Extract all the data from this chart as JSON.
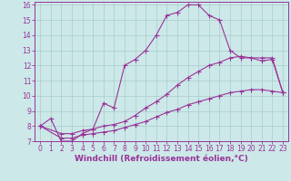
{
  "bg_color": "#cce8e8",
  "line_color": "#993399",
  "grid_color": "#aacccc",
  "xlabel": "Windchill (Refroidissement éolien,°C)",
  "xlabel_fontsize": 6.5,
  "tick_fontsize": 5.5,
  "xlim": [
    -0.5,
    23.5
  ],
  "ylim": [
    7,
    16.2
  ],
  "yticks": [
    7,
    8,
    9,
    10,
    11,
    12,
    13,
    14,
    15,
    16
  ],
  "xticks": [
    0,
    1,
    2,
    3,
    4,
    5,
    6,
    7,
    8,
    9,
    10,
    11,
    12,
    13,
    14,
    15,
    16,
    17,
    18,
    19,
    20,
    21,
    22,
    23
  ],
  "line1_x": [
    0,
    1,
    2,
    3,
    4,
    5,
    6,
    7,
    8,
    9,
    10,
    11,
    12,
    13,
    14,
    15,
    16,
    17,
    18,
    19,
    20,
    21,
    22,
    23
  ],
  "line1_y": [
    8.0,
    8.5,
    7.0,
    7.0,
    7.5,
    7.8,
    9.5,
    9.2,
    12.0,
    12.4,
    13.0,
    14.0,
    15.3,
    15.5,
    16.0,
    16.0,
    15.3,
    15.0,
    13.0,
    12.5,
    12.5,
    12.3,
    12.4,
    10.2
  ],
  "line2_x": [
    0,
    2,
    3,
    4,
    5,
    6,
    7,
    8,
    9,
    10,
    11,
    12,
    13,
    14,
    15,
    16,
    17,
    18,
    19,
    20,
    21,
    22,
    23
  ],
  "line2_y": [
    8.0,
    7.5,
    7.5,
    7.7,
    7.8,
    8.0,
    8.1,
    8.3,
    8.7,
    9.2,
    9.6,
    10.1,
    10.7,
    11.2,
    11.6,
    12.0,
    12.2,
    12.5,
    12.6,
    12.5,
    12.5,
    12.5,
    10.2
  ],
  "line3_x": [
    0,
    2,
    3,
    4,
    5,
    6,
    7,
    8,
    9,
    10,
    11,
    12,
    13,
    14,
    15,
    16,
    17,
    18,
    19,
    20,
    21,
    22,
    23
  ],
  "line3_y": [
    8.0,
    7.2,
    7.2,
    7.4,
    7.5,
    7.6,
    7.7,
    7.9,
    8.1,
    8.3,
    8.6,
    8.9,
    9.1,
    9.4,
    9.6,
    9.8,
    10.0,
    10.2,
    10.3,
    10.4,
    10.4,
    10.3,
    10.2
  ]
}
